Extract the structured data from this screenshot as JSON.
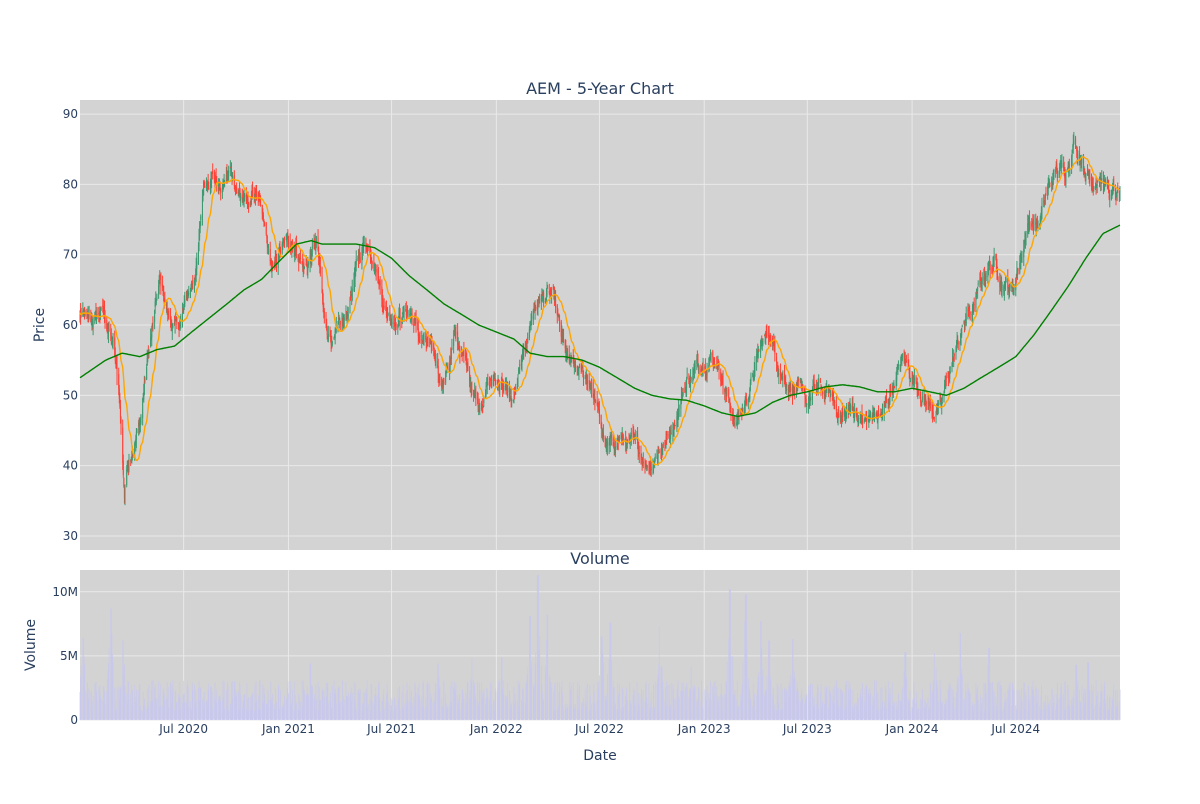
{
  "chart_data": [
    {
      "type": "candlestick",
      "title": "AEM - 5-Year Chart",
      "ylabel": "Price",
      "ylim": [
        28,
        92
      ],
      "yticks": [
        30,
        40,
        50,
        60,
        70,
        80,
        90
      ],
      "xlim": [
        "2020-01-01",
        "2024-12-31"
      ],
      "xticks": [
        "2020-07-01",
        "2021-01-01",
        "2021-07-01",
        "2022-01-01",
        "2022-07-01",
        "2023-01-01",
        "2023-07-01",
        "2024-01-01",
        "2024-07-01"
      ],
      "xtick_labels": [
        "Jul 2020",
        "Jan 2021",
        "Jul 2021",
        "Jan 2022",
        "Jul 2022",
        "Jan 2023",
        "Jul 2023",
        "Jan 2024",
        "Jul 2024"
      ],
      "grid": true,
      "colors": {
        "up": "#3d9970",
        "down": "#ff4136",
        "ma20": "#ffa500",
        "ma200": "#008000",
        "plot_bg": "#d3d3d3",
        "grid": "#e9e9e9"
      },
      "series": [
        {
          "name": "MA20",
          "color": "#ffa500"
        },
        {
          "name": "MA200",
          "color": "#008000"
        }
      ],
      "price_path": [
        [
          "2020-01-01",
          61.5
        ],
        [
          "2020-01-20",
          60
        ],
        [
          "2020-02-10",
          62
        ],
        [
          "2020-02-28",
          57
        ],
        [
          "2020-03-10",
          50
        ],
        [
          "2020-03-19",
          36
        ],
        [
          "2020-03-25",
          41
        ],
        [
          "2020-04-15",
          46
        ],
        [
          "2020-04-30",
          56
        ],
        [
          "2020-05-20",
          66
        ],
        [
          "2020-06-05",
          61
        ],
        [
          "2020-06-20",
          59
        ],
        [
          "2020-07-05",
          63
        ],
        [
          "2020-07-25",
          69
        ],
        [
          "2020-08-05",
          80
        ],
        [
          "2020-08-20",
          82
        ],
        [
          "2020-09-05",
          79
        ],
        [
          "2020-09-20",
          82
        ],
        [
          "2020-10-05",
          79
        ],
        [
          "2020-10-20",
          77
        ],
        [
          "2020-11-05",
          79
        ],
        [
          "2020-11-20",
          73
        ],
        [
          "2020-12-05",
          67
        ],
        [
          "2020-12-20",
          71
        ],
        [
          "2021-01-10",
          72
        ],
        [
          "2021-01-30",
          68
        ],
        [
          "2021-02-20",
          72
        ],
        [
          "2021-03-05",
          60
        ],
        [
          "2021-03-20",
          58
        ],
        [
          "2021-04-10",
          60
        ],
        [
          "2021-04-30",
          68
        ],
        [
          "2021-05-15",
          72
        ],
        [
          "2021-06-01",
          70
        ],
        [
          "2021-06-20",
          62
        ],
        [
          "2021-07-10",
          61
        ],
        [
          "2021-08-01",
          62
        ],
        [
          "2021-08-20",
          58
        ],
        [
          "2021-09-10",
          56
        ],
        [
          "2021-09-30",
          52
        ],
        [
          "2021-10-20",
          58
        ],
        [
          "2021-11-10",
          54
        ],
        [
          "2021-12-01",
          49
        ],
        [
          "2021-12-20",
          52
        ],
        [
          "2022-01-10",
          52
        ],
        [
          "2022-01-30",
          49
        ],
        [
          "2022-02-20",
          56
        ],
        [
          "2022-03-05",
          62
        ],
        [
          "2022-03-20",
          64
        ],
        [
          "2022-04-10",
          64
        ],
        [
          "2022-04-25",
          58
        ],
        [
          "2022-05-10",
          54
        ],
        [
          "2022-05-30",
          53
        ],
        [
          "2022-06-15",
          52
        ],
        [
          "2022-06-30",
          47
        ],
        [
          "2022-07-15",
          42
        ],
        [
          "2022-08-05",
          44
        ],
        [
          "2022-08-25",
          43
        ],
        [
          "2022-09-10",
          42
        ],
        [
          "2022-09-25",
          40
        ],
        [
          "2022-10-10",
          42
        ],
        [
          "2022-10-30",
          44
        ],
        [
          "2022-11-15",
          48
        ],
        [
          "2022-12-01",
          52
        ],
        [
          "2022-12-20",
          54
        ],
        [
          "2023-01-10",
          56
        ],
        [
          "2023-01-25",
          55
        ],
        [
          "2023-02-10",
          50
        ],
        [
          "2023-02-25",
          46
        ],
        [
          "2023-03-10",
          48
        ],
        [
          "2023-03-25",
          52
        ],
        [
          "2023-04-10",
          57
        ],
        [
          "2023-04-25",
          59
        ],
        [
          "2023-05-10",
          55
        ],
        [
          "2023-05-25",
          52
        ],
        [
          "2023-06-10",
          51
        ],
        [
          "2023-06-30",
          49
        ],
        [
          "2023-07-20",
          51
        ],
        [
          "2023-08-10",
          50
        ],
        [
          "2023-08-30",
          47
        ],
        [
          "2023-09-20",
          48
        ],
        [
          "2023-10-10",
          46
        ],
        [
          "2023-10-25",
          47
        ],
        [
          "2023-11-10",
          47
        ],
        [
          "2023-11-30",
          52
        ],
        [
          "2023-12-15",
          55
        ],
        [
          "2024-01-01",
          53
        ],
        [
          "2024-01-20",
          50
        ],
        [
          "2024-02-05",
          48
        ],
        [
          "2024-02-20",
          48
        ],
        [
          "2024-03-05",
          53
        ],
        [
          "2024-03-20",
          57
        ],
        [
          "2024-04-05",
          61
        ],
        [
          "2024-04-20",
          63
        ],
        [
          "2024-05-10",
          68
        ],
        [
          "2024-05-25",
          69
        ],
        [
          "2024-06-10",
          66
        ],
        [
          "2024-06-25",
          65
        ],
        [
          "2024-07-10",
          70
        ],
        [
          "2024-07-25",
          75
        ],
        [
          "2024-08-10",
          74
        ],
        [
          "2024-08-25",
          79
        ],
        [
          "2024-09-10",
          82
        ],
        [
          "2024-09-25",
          82
        ],
        [
          "2024-10-10",
          86
        ],
        [
          "2024-10-25",
          84
        ],
        [
          "2024-11-10",
          80
        ],
        [
          "2024-11-25",
          82
        ],
        [
          "2024-12-10",
          79
        ],
        [
          "2024-12-31",
          78
        ]
      ],
      "ma200_path": [
        [
          "2020-01-01",
          52.5
        ],
        [
          "2020-02-15",
          55
        ],
        [
          "2020-03-15",
          56
        ],
        [
          "2020-04-15",
          55.5
        ],
        [
          "2020-05-15",
          56.5
        ],
        [
          "2020-06-15",
          57
        ],
        [
          "2020-07-15",
          59
        ],
        [
          "2020-08-15",
          61
        ],
        [
          "2020-09-15",
          63
        ],
        [
          "2020-10-15",
          65
        ],
        [
          "2020-11-15",
          66.5
        ],
        [
          "2020-12-15",
          69
        ],
        [
          "2021-01-15",
          71.5
        ],
        [
          "2021-02-10",
          72
        ],
        [
          "2021-03-01",
          71.5
        ],
        [
          "2021-04-01",
          71.5
        ],
        [
          "2021-05-01",
          71.5
        ],
        [
          "2021-06-01",
          71
        ],
        [
          "2021-07-01",
          69.5
        ],
        [
          "2021-08-01",
          67
        ],
        [
          "2021-09-01",
          65
        ],
        [
          "2021-10-01",
          63
        ],
        [
          "2021-11-01",
          61.5
        ],
        [
          "2021-12-01",
          60
        ],
        [
          "2022-01-01",
          59
        ],
        [
          "2022-02-01",
          58
        ],
        [
          "2022-03-01",
          56
        ],
        [
          "2022-04-01",
          55.5
        ],
        [
          "2022-05-01",
          55.5
        ],
        [
          "2022-06-01",
          55
        ],
        [
          "2022-07-01",
          54
        ],
        [
          "2022-08-01",
          52.5
        ],
        [
          "2022-09-01",
          51
        ],
        [
          "2022-10-01",
          50
        ],
        [
          "2022-11-01",
          49.5
        ],
        [
          "2022-12-01",
          49.3
        ],
        [
          "2023-01-01",
          48.5
        ],
        [
          "2023-02-01",
          47.5
        ],
        [
          "2023-03-01",
          47
        ],
        [
          "2023-04-01",
          47.5
        ],
        [
          "2023-05-01",
          49
        ],
        [
          "2023-06-01",
          50
        ],
        [
          "2023-07-01",
          50.5
        ],
        [
          "2023-08-01",
          51.2
        ],
        [
          "2023-09-01",
          51.5
        ],
        [
          "2023-10-01",
          51.2
        ],
        [
          "2023-11-01",
          50.5
        ],
        [
          "2023-12-01",
          50.5
        ],
        [
          "2024-01-01",
          51
        ],
        [
          "2024-02-01",
          50.5
        ],
        [
          "2024-03-01",
          50
        ],
        [
          "2024-04-01",
          51
        ],
        [
          "2024-05-01",
          52.5
        ],
        [
          "2024-06-01",
          54
        ],
        [
          "2024-07-01",
          55.5
        ],
        [
          "2024-08-01",
          58.5
        ],
        [
          "2024-09-01",
          62
        ],
        [
          "2024-10-01",
          65.5
        ],
        [
          "2024-11-01",
          69.5
        ],
        [
          "2024-12-01",
          73
        ],
        [
          "2024-12-31",
          74.2
        ]
      ]
    },
    {
      "type": "bar",
      "title": "Volume",
      "xlabel": "Date",
      "ylabel": "Volume",
      "ylim": [
        0,
        11700000
      ],
      "yticks": [
        0,
        5000000,
        10000000
      ],
      "ytick_labels": [
        "0",
        "5M",
        "10M"
      ],
      "color": "#c8c8ee",
      "volume_spikes": [
        [
          "2020-01-06",
          6400000
        ],
        [
          "2020-02-24",
          8700000
        ],
        [
          "2020-03-16",
          6200000
        ],
        [
          "2020-09-28",
          3000000
        ],
        [
          "2021-02-08",
          4400000
        ],
        [
          "2021-09-20",
          4400000
        ],
        [
          "2021-11-20",
          4800000
        ],
        [
          "2022-01-10",
          4900000
        ],
        [
          "2022-03-01",
          8100000
        ],
        [
          "2022-03-15",
          11300000
        ],
        [
          "2022-04-01",
          8200000
        ],
        [
          "2022-07-05",
          6500000
        ],
        [
          "2022-07-20",
          7600000
        ],
        [
          "2022-10-15",
          7300000
        ],
        [
          "2022-12-10",
          4200000
        ],
        [
          "2023-02-15",
          10200000
        ],
        [
          "2023-03-15",
          9800000
        ],
        [
          "2023-04-10",
          7700000
        ],
        [
          "2023-04-25",
          6200000
        ],
        [
          "2023-06-05",
          6300000
        ],
        [
          "2023-12-20",
          5300000
        ],
        [
          "2024-02-10",
          5200000
        ],
        [
          "2024-03-25",
          6800000
        ],
        [
          "2024-05-15",
          5600000
        ],
        [
          "2024-10-15",
          4300000
        ],
        [
          "2024-11-05",
          4500000
        ]
      ]
    }
  ]
}
